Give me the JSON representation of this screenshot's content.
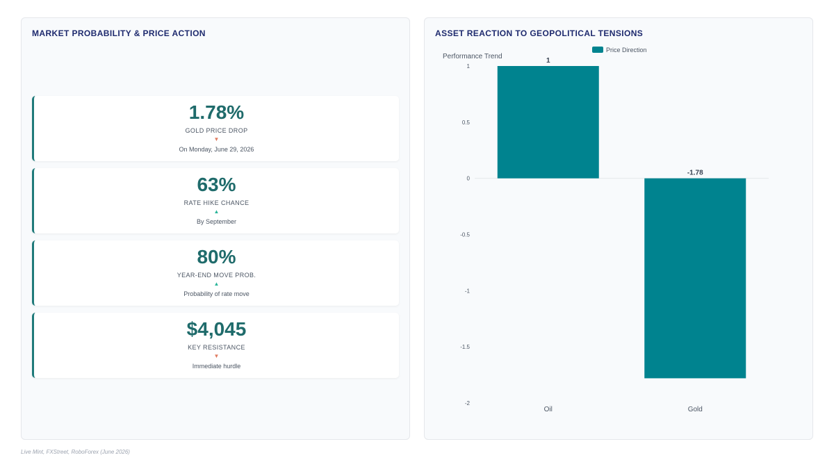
{
  "left_panel": {
    "title": "MARKET PROBABILITY & PRICE ACTION",
    "kpis": [
      {
        "value": "1.78%",
        "label": "GOLD PRICE DROP",
        "direction": "down",
        "arrow": "▼",
        "sub": "On Monday, June 29, 2026"
      },
      {
        "value": "63%",
        "label": "RATE HIKE CHANCE",
        "direction": "up",
        "arrow": "▲",
        "sub": "By September"
      },
      {
        "value": "80%",
        "label": "YEAR-END MOVE PROB.",
        "direction": "up",
        "arrow": "▲",
        "sub": "Probability of rate move"
      },
      {
        "value": "$4,045",
        "label": "KEY RESISTANCE",
        "direction": "down",
        "arrow": "▼",
        "sub": "Immediate hurdle"
      }
    ]
  },
  "right_panel": {
    "title": "ASSET REACTION TO GEOPOLITICAL TENSIONS"
  },
  "chart_data": {
    "type": "bar",
    "title": "ASSET REACTION TO GEOPOLITICAL TENSIONS",
    "ylabel": "Performance Trend",
    "xlabel": "",
    "categories": [
      "Oil",
      "Gold"
    ],
    "series": [
      {
        "name": "Price Direction",
        "values": [
          1,
          -1.78
        ],
        "color": "#00838f"
      }
    ],
    "data_labels": [
      "1",
      "-1.78"
    ],
    "ylim": [
      -2,
      1
    ],
    "yticks": [
      1,
      0.5,
      0,
      -0.5,
      -1,
      -1.5,
      -2
    ],
    "ytick_labels": [
      "1",
      "0.5",
      "0",
      "-0.5",
      "-1",
      "-1.5",
      "-2"
    ],
    "legend": "top",
    "grid": false
  },
  "colors": {
    "accent": "#1f7a7a",
    "bar": "#00838f",
    "title": "#1e2a6e",
    "down": "#e07a5f",
    "up": "#2bb59a"
  },
  "footer": {
    "source": "Live Mint, FXStreet, RoboForex (June 2026)"
  }
}
